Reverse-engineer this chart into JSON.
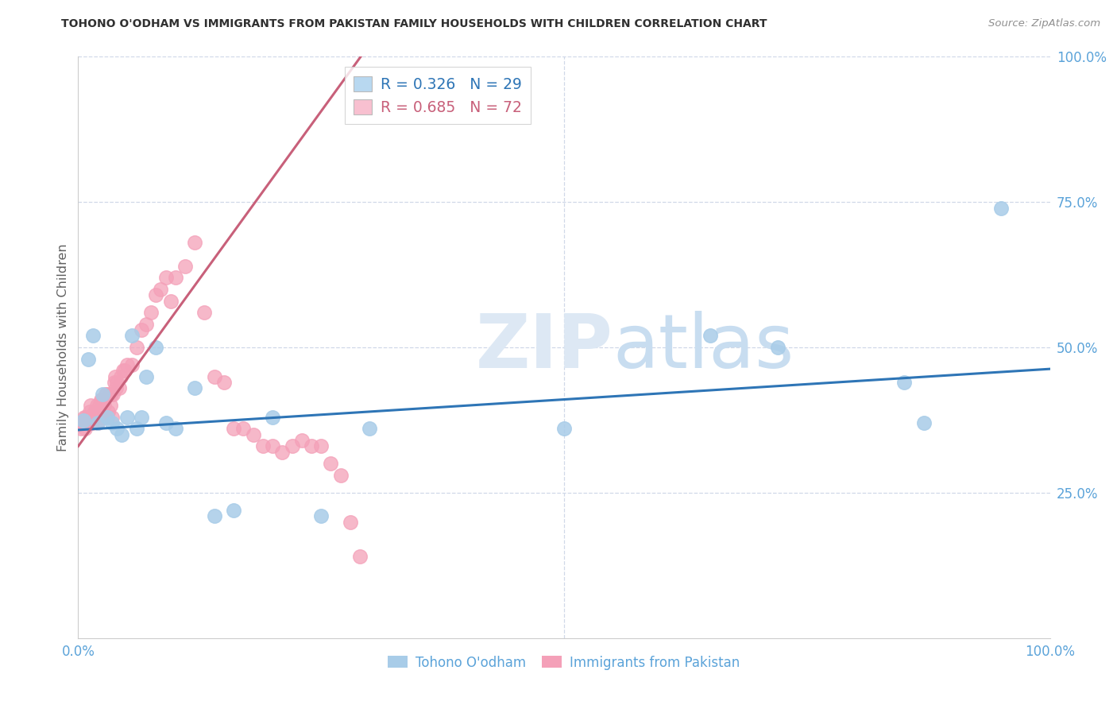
{
  "title": "TOHONO O'ODHAM VS IMMIGRANTS FROM PAKISTAN FAMILY HOUSEHOLDS WITH CHILDREN CORRELATION CHART",
  "source": "Source: ZipAtlas.com",
  "ylabel": "Family Households with Children",
  "watermark_zip": "ZIP",
  "watermark_atlas": "atlas",
  "xlim": [
    0.0,
    1.0
  ],
  "ylim": [
    0.0,
    1.0
  ],
  "xtick_vals": [
    0.0,
    0.25,
    0.5,
    0.75,
    1.0
  ],
  "ytick_vals": [
    0.0,
    0.25,
    0.5,
    0.75,
    1.0
  ],
  "xtick_labels": [
    "0.0%",
    "",
    "",
    "",
    "100.0%"
  ],
  "ytick_labels_right": [
    "",
    "25.0%",
    "50.0%",
    "75.0%",
    "100.0%"
  ],
  "blue_R": 0.326,
  "blue_N": 29,
  "pink_R": 0.685,
  "pink_N": 72,
  "blue_dot_color": "#a8cce8",
  "pink_dot_color": "#f4a0b8",
  "blue_line_color": "#2e75b6",
  "pink_line_color": "#c8607a",
  "blue_legend_patch": "#b8d8f0",
  "pink_legend_patch": "#f8c0d0",
  "tick_label_color": "#5ba3d9",
  "grid_color": "#d0d8e8",
  "ylabel_color": "#606060",
  "title_color": "#303030",
  "source_color": "#909090",
  "bottom_label_color": "#5ba3d9",
  "bg_color": "#ffffff",
  "blue_x": [
    0.005,
    0.01,
    0.015,
    0.02,
    0.025,
    0.03,
    0.035,
    0.04,
    0.045,
    0.05,
    0.055,
    0.06,
    0.065,
    0.07,
    0.08,
    0.09,
    0.1,
    0.12,
    0.14,
    0.16,
    0.2,
    0.25,
    0.3,
    0.5,
    0.65,
    0.72,
    0.85,
    0.87,
    0.95
  ],
  "blue_y": [
    0.375,
    0.48,
    0.52,
    0.37,
    0.42,
    0.38,
    0.37,
    0.36,
    0.35,
    0.38,
    0.52,
    0.36,
    0.38,
    0.45,
    0.5,
    0.37,
    0.36,
    0.43,
    0.21,
    0.22,
    0.38,
    0.21,
    0.36,
    0.36,
    0.52,
    0.5,
    0.44,
    0.37,
    0.74
  ],
  "pink_x": [
    0.003,
    0.004,
    0.005,
    0.006,
    0.007,
    0.008,
    0.009,
    0.01,
    0.011,
    0.012,
    0.013,
    0.014,
    0.015,
    0.016,
    0.017,
    0.018,
    0.019,
    0.02,
    0.021,
    0.022,
    0.023,
    0.024,
    0.025,
    0.026,
    0.027,
    0.028,
    0.029,
    0.03,
    0.031,
    0.032,
    0.033,
    0.034,
    0.035,
    0.036,
    0.037,
    0.038,
    0.039,
    0.04,
    0.042,
    0.044,
    0.046,
    0.048,
    0.05,
    0.055,
    0.06,
    0.065,
    0.07,
    0.075,
    0.08,
    0.085,
    0.09,
    0.095,
    0.1,
    0.11,
    0.12,
    0.13,
    0.14,
    0.15,
    0.16,
    0.17,
    0.18,
    0.19,
    0.2,
    0.21,
    0.22,
    0.23,
    0.24,
    0.25,
    0.26,
    0.27,
    0.28,
    0.29
  ],
  "pink_y": [
    0.36,
    0.37,
    0.37,
    0.38,
    0.36,
    0.38,
    0.37,
    0.38,
    0.38,
    0.39,
    0.4,
    0.37,
    0.38,
    0.38,
    0.39,
    0.39,
    0.4,
    0.37,
    0.39,
    0.4,
    0.41,
    0.41,
    0.38,
    0.41,
    0.4,
    0.42,
    0.42,
    0.38,
    0.39,
    0.42,
    0.4,
    0.42,
    0.38,
    0.42,
    0.44,
    0.45,
    0.43,
    0.44,
    0.43,
    0.45,
    0.46,
    0.46,
    0.47,
    0.47,
    0.5,
    0.53,
    0.54,
    0.56,
    0.59,
    0.6,
    0.62,
    0.58,
    0.62,
    0.64,
    0.68,
    0.56,
    0.45,
    0.44,
    0.36,
    0.36,
    0.35,
    0.33,
    0.33,
    0.32,
    0.33,
    0.34,
    0.33,
    0.33,
    0.3,
    0.28,
    0.2,
    0.14
  ],
  "blue_line_x0": 0.0,
  "blue_line_x1": 1.0,
  "blue_line_y0": 0.358,
  "blue_line_y1": 0.463,
  "pink_line_x0": 0.0,
  "pink_line_x1": 0.295,
  "pink_line_y0": 0.33,
  "pink_line_y1": 1.01
}
